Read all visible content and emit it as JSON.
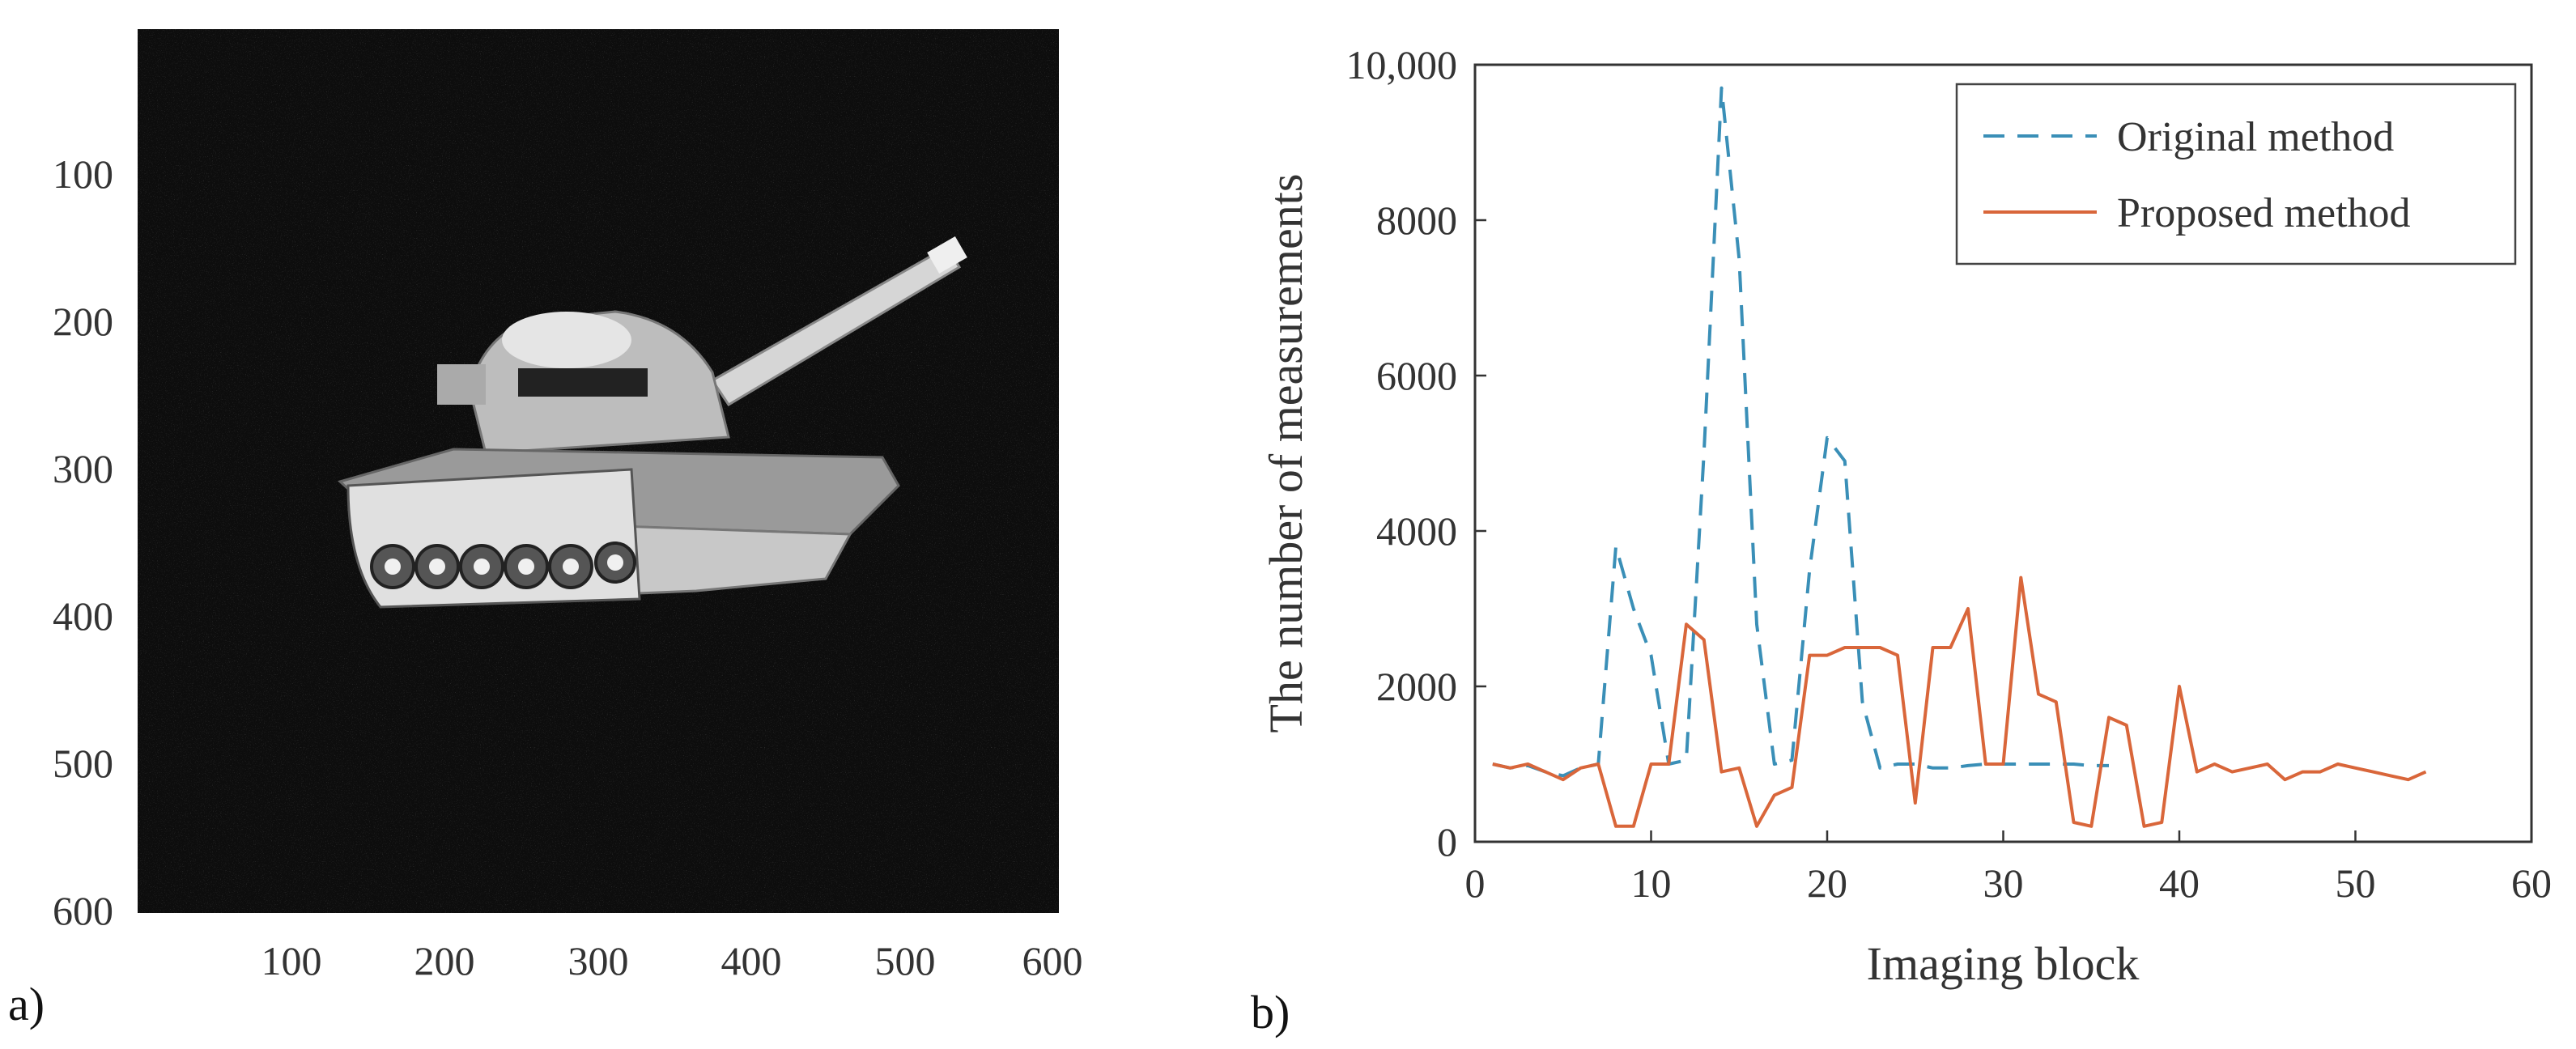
{
  "panel_a": {
    "label": "a)",
    "image_description_icon": "tank-photo-icon",
    "x_ticks": [
      100,
      200,
      300,
      400,
      500,
      600
    ],
    "y_ticks": [
      100,
      200,
      300,
      400,
      500,
      600
    ],
    "xlim": [
      0,
      600
    ],
    "ylim": [
      0,
      600
    ]
  },
  "panel_b": {
    "label": "b)"
  },
  "chart_data": {
    "type": "line",
    "title": "",
    "xlabel": "Imaging block",
    "ylabel": "The number of measurements",
    "xlim": [
      0,
      60
    ],
    "ylim": [
      0,
      10000
    ],
    "x_ticks": [
      0,
      10,
      20,
      30,
      40,
      50,
      60
    ],
    "x_tick_labels": [
      "0",
      "10",
      "20",
      "30",
      "40",
      "50",
      "60"
    ],
    "y_ticks": [
      0,
      2000,
      4000,
      6000,
      8000,
      10000
    ],
    "y_tick_labels": [
      "0",
      "2000",
      "4000",
      "6000",
      "8000",
      "10,000"
    ],
    "legend_position": "top-right",
    "series": [
      {
        "name": "Original method",
        "style": "dashed",
        "color": "#3a8fb7",
        "x": [
          1,
          2,
          3,
          4,
          5,
          6,
          7,
          8,
          9,
          10,
          11,
          12,
          13,
          14,
          15,
          16,
          17,
          18,
          19,
          20,
          21,
          22,
          23,
          24,
          25,
          26,
          27,
          28,
          29,
          30,
          31,
          32,
          33,
          34,
          35,
          36
        ],
        "values": [
          1000,
          950,
          980,
          900,
          850,
          950,
          1000,
          3800,
          3000,
          2400,
          1000,
          1050,
          5000,
          9700,
          7500,
          2800,
          1000,
          1050,
          3500,
          5200,
          4900,
          1800,
          950,
          1000,
          1000,
          950,
          950,
          980,
          1000,
          1000,
          1000,
          1000,
          1000,
          1000,
          980,
          980
        ]
      },
      {
        "name": "Proposed method",
        "style": "solid",
        "color": "#d9663a",
        "x": [
          1,
          2,
          3,
          4,
          5,
          6,
          7,
          8,
          9,
          10,
          11,
          12,
          13,
          14,
          15,
          16,
          17,
          18,
          19,
          20,
          21,
          22,
          23,
          24,
          25,
          26,
          27,
          28,
          29,
          30,
          31,
          32,
          33,
          34,
          35,
          36,
          37,
          38,
          39,
          40,
          41,
          42,
          43,
          44,
          45,
          46,
          47,
          48,
          49,
          50,
          51,
          52,
          53,
          54
        ],
        "values": [
          1000,
          950,
          1000,
          900,
          800,
          950,
          1000,
          200,
          200,
          1000,
          1000,
          2800,
          2600,
          900,
          950,
          200,
          600,
          700,
          2400,
          2400,
          2500,
          2500,
          2500,
          2400,
          500,
          2500,
          2500,
          3000,
          1000,
          1000,
          3400,
          1900,
          1800,
          250,
          200,
          1600,
          1500,
          200,
          250,
          2000,
          900,
          1000,
          900,
          950,
          1000,
          800,
          900,
          900,
          1000,
          950,
          900,
          850,
          800,
          900
        ]
      }
    ]
  }
}
